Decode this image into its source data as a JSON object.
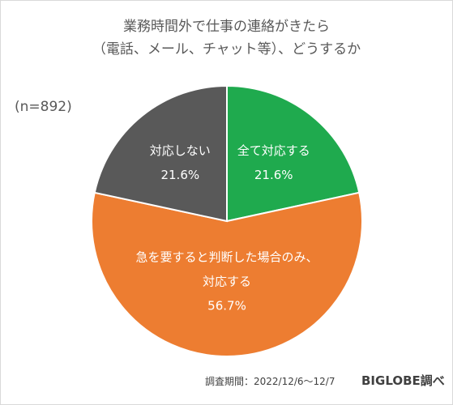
{
  "title_line1": "業務時間外で仕事の連絡がきたら",
  "title_line2": "（電話、メール、チャット等）、どうするか",
  "sample_size": "(n=892)",
  "footer": {
    "period": "調査期間：2022/12/6〜12/7",
    "brand": "BIGLOBE調べ"
  },
  "chart_data": {
    "type": "pie",
    "title": "業務時間外で仕事の連絡がきたら（電話、メール、チャット等）、どうするか",
    "slices": [
      {
        "label": "全て対応する",
        "value": 21.6,
        "value_label": "21.6%",
        "color": "#1FAA4E"
      },
      {
        "label": "急を要すると判断した場合のみ、対応する",
        "label_lines": [
          "急を要すると判断した場合のみ、",
          "対応する"
        ],
        "value": 56.7,
        "value_label": "56.7%",
        "color": "#ED7D31"
      },
      {
        "label": "対応しない",
        "value": 21.6,
        "value_label": "21.6%",
        "color": "#595959"
      }
    ],
    "start_angle_deg": 0,
    "direction": "clockwise",
    "legend": "none"
  }
}
